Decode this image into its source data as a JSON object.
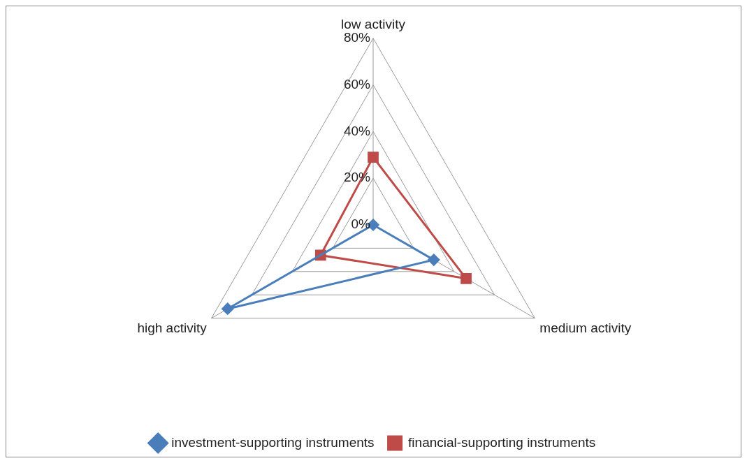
{
  "chart_data": {
    "type": "radar",
    "categories": [
      "low activity",
      "medium activity",
      "high activity"
    ],
    "series": [
      {
        "name": "investment-supporting instruments",
        "color": "#4a7ebb",
        "values": [
          0,
          30,
          72
        ],
        "marker": "diamond"
      },
      {
        "name": "financial-supporting instruments",
        "color": "#be4b48",
        "values": [
          29,
          46,
          26
        ],
        "marker": "square"
      }
    ],
    "ylim": [
      0,
      80
    ],
    "yticks": [
      {
        "value": 0,
        "label": "0%"
      },
      {
        "value": 20,
        "label": "20%"
      },
      {
        "value": 40,
        "label": "40%"
      },
      {
        "value": 60,
        "label": "60%"
      },
      {
        "value": 80,
        "label": "80%"
      }
    ],
    "grid": true,
    "legend": "bottom",
    "line_style": "solid"
  }
}
